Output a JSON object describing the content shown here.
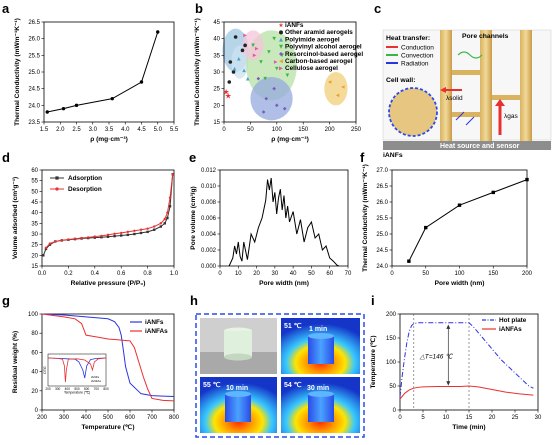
{
  "panels": {
    "a": "a",
    "b": "b",
    "c": "c",
    "d": "d",
    "e": "e",
    "f": "f",
    "g": "g",
    "h": "h",
    "i": "i"
  },
  "chart_data": [
    {
      "panel": "a",
      "type": "line",
      "xlabel": "ρ (mg·cm⁻³)",
      "ylabel": "Thermal Conductivity (mWm⁻¹K⁻¹)",
      "xlim": [
        1.5,
        5.5
      ],
      "ylim": [
        23.5,
        26.5
      ],
      "xticks": [
        "1.5",
        "2.0",
        "2.5",
        "3.0",
        "3.5",
        "4.0",
        "4.5",
        "5.0",
        "5.5"
      ],
      "yticks": [
        "23.5",
        "24.0",
        "24.5",
        "25.0",
        "25.5",
        "26.0",
        "26.5"
      ],
      "x": [
        1.6,
        2.1,
        2.5,
        3.6,
        4.5,
        5.0
      ],
      "y": [
        23.8,
        23.9,
        24.0,
        24.2,
        24.7,
        26.2
      ],
      "marker": "circle",
      "color": "#000000"
    },
    {
      "panel": "b",
      "type": "scatter",
      "xlabel": "ρ (mg·cm⁻³)",
      "ylabel": "Thermal Conductivity (mWm⁻¹K⁻¹)",
      "xlim": [
        0,
        250
      ],
      "ylim": [
        15,
        45
      ],
      "xticks": [
        "0",
        "50",
        "100",
        "150",
        "200",
        "250"
      ],
      "yticks": [
        "15",
        "20",
        "25",
        "30",
        "35",
        "40",
        "45"
      ],
      "legend_position": "top-right",
      "series": [
        {
          "name": "iANFs",
          "color": "#e8312f",
          "marker": "star",
          "points": [
            [
              4,
              24.0
            ],
            [
              8,
              22.8
            ]
          ]
        },
        {
          "name": "Other aramid aerogels",
          "color": "#222222",
          "marker": "circle",
          "points": [
            [
              22,
              40.5
            ],
            [
              35,
              36.5
            ],
            [
              40,
              38
            ],
            [
              12,
              33
            ],
            [
              18,
              30
            ],
            [
              10,
              27
            ]
          ]
        },
        {
          "name": "Polyimide aerogel",
          "color": "#4aa6c9",
          "marker": "triangle",
          "points": [
            [
              20,
              31
            ],
            [
              28,
              34
            ],
            [
              38,
              30.5
            ],
            [
              45,
              28
            ]
          ]
        },
        {
          "name": "Polyvinyl alcohol aerogel",
          "color": "#3bb44a",
          "marker": "triangle-down",
          "points": [
            [
              55,
              38
            ],
            [
              70,
              33
            ],
            [
              85,
              36
            ],
            [
              100,
              31
            ],
            [
              110,
              35
            ],
            [
              120,
              29
            ],
            [
              95,
              40
            ],
            [
              78,
              28
            ]
          ]
        },
        {
          "name": "Resorcinol-based aerogel",
          "color": "#7e57c2",
          "marker": "diamond",
          "points": [
            [
              65,
              28
            ],
            [
              80,
              22
            ],
            [
              95,
              25
            ],
            [
              115,
              19
            ],
            [
              100,
              20
            ],
            [
              75,
              18
            ]
          ]
        },
        {
          "name": "Carbon-based aerogel",
          "color": "#f0a030",
          "marker": "triangle-left",
          "points": [
            [
              200,
              27
            ],
            [
              215,
              23
            ],
            [
              225,
              25.5
            ]
          ]
        },
        {
          "name": "Cellulose aerogel",
          "color": "#e05aa0",
          "marker": "triangle-right",
          "points": [
            [
              62,
              37
            ],
            [
              58,
              35
            ],
            [
              40,
              41
            ],
            [
              98,
              33
            ]
          ]
        }
      ],
      "regions": [
        {
          "name": "Other aramid aerogels",
          "color": "#9fc7e2",
          "cx": 22,
          "cy": 36.5,
          "rx": 25,
          "ry": 6.5
        },
        {
          "name": "Polyimide aerogel",
          "color": "#cce1f0",
          "cx": 30,
          "cy": 33,
          "rx": 16,
          "ry": 5
        },
        {
          "name": "Polyvinyl alcohol aerogel",
          "color": "#b7e2a6",
          "cx": 90,
          "cy": 32,
          "rx": 48,
          "ry": 10.5
        },
        {
          "name": "Resorcinol-based aerogel",
          "color": "#94a9dd",
          "cx": 90,
          "cy": 22,
          "rx": 40,
          "ry": 6.5
        },
        {
          "name": "Carbon-based aerogel",
          "color": "#f2cf78",
          "cx": 212,
          "cy": 25,
          "rx": 22,
          "ry": 5
        },
        {
          "name": "Cellulose aerogel",
          "color": "#f4c6da",
          "cx": 55,
          "cy": 38,
          "rx": 20,
          "ry": 4.5
        }
      ]
    },
    {
      "panel": "d",
      "type": "line",
      "xlabel": "Relative pressure (P/P₀)",
      "ylabel": "Volume adsorbed (cm³g⁻¹)",
      "xlim": [
        0,
        1.0
      ],
      "ylim": [
        15,
        60
      ],
      "xticks": [
        "0.0",
        "0.2",
        "0.4",
        "0.6",
        "0.8",
        "1.0"
      ],
      "yticks": [
        "15",
        "20",
        "25",
        "30",
        "35",
        "40",
        "45",
        "50",
        "55",
        "60"
      ],
      "legend_position": "top-left",
      "series": [
        {
          "name": "Adsorption",
          "color": "#333333",
          "marker": "square",
          "x": [
            0.01,
            0.03,
            0.06,
            0.1,
            0.15,
            0.2,
            0.25,
            0.3,
            0.35,
            0.4,
            0.45,
            0.5,
            0.55,
            0.6,
            0.65,
            0.7,
            0.75,
            0.8,
            0.85,
            0.9,
            0.93,
            0.95,
            0.97,
            0.99
          ],
          "y": [
            20,
            23,
            25,
            26.5,
            27,
            27.3,
            27.6,
            27.9,
            28.1,
            28.3,
            28.5,
            28.7,
            29,
            29.3,
            29.6,
            30,
            30.5,
            31,
            32,
            33.5,
            35,
            37.5,
            43,
            58
          ]
        },
        {
          "name": "Desorption",
          "color": "#e8312f",
          "marker": "circle",
          "x": [
            0.99,
            0.97,
            0.95,
            0.93,
            0.9,
            0.85,
            0.8,
            0.75,
            0.7,
            0.65,
            0.6,
            0.55,
            0.5,
            0.45,
            0.4,
            0.35,
            0.3,
            0.25,
            0.2,
            0.15,
            0.1,
            0.06,
            0.03
          ],
          "y": [
            58,
            47,
            40,
            37,
            35,
            33.5,
            32.5,
            32,
            31.5,
            31,
            30.5,
            30.1,
            29.6,
            29.1,
            28.8,
            28.4,
            28.1,
            27.8,
            27.4,
            27.1,
            26.5,
            25.5,
            23.5
          ]
        }
      ]
    },
    {
      "panel": "e",
      "type": "line",
      "xlabel": "Pore width (nm)",
      "ylabel": "Pore volume (cm³/g)",
      "xlim": [
        0,
        70
      ],
      "ylim": [
        0,
        0.012
      ],
      "xticks": [
        "0",
        "10",
        "20",
        "30",
        "40",
        "50",
        "60",
        "70"
      ],
      "yticks": [
        "0.000",
        "0.002",
        "0.004",
        "0.006",
        "0.008",
        "0.010",
        "0.012"
      ],
      "x": [
        5,
        7,
        8,
        9,
        10,
        11,
        12,
        13,
        15,
        17,
        19,
        21,
        23,
        25,
        26,
        27,
        28,
        29,
        30,
        31,
        32,
        33,
        34,
        35,
        36,
        37,
        38,
        40,
        42,
        44,
        46,
        48,
        50,
        52,
        54,
        56,
        58,
        60,
        62,
        64,
        65
      ],
      "y": [
        0,
        0.001,
        0.0025,
        0.0015,
        0.003,
        0.0012,
        0.0006,
        0.003,
        0.0008,
        0.004,
        0.003,
        0.0048,
        0.006,
        0.0082,
        0.0108,
        0.0095,
        0.011,
        0.008,
        0.0092,
        0.0065,
        0.0085,
        0.0096,
        0.007,
        0.0088,
        0.006,
        0.0075,
        0.0055,
        0.0068,
        0.004,
        0.0058,
        0.003,
        0.0048,
        0.0055,
        0.0035,
        0.004,
        0.002,
        0.0025,
        0.001,
        0.0006,
        0.0001,
        0
      ],
      "color": "#000000"
    },
    {
      "panel": "f",
      "type": "line",
      "xlabel": "Pore width (nm)",
      "ylabel": "Thermal Conductivity (mWm⁻¹K⁻¹)",
      "xlim": [
        0,
        200
      ],
      "ylim": [
        24.0,
        27.0
      ],
      "xticks": [
        "0",
        "50",
        "100",
        "150",
        "200"
      ],
      "yticks": [
        "24.0",
        "24.5",
        "25.0",
        "25.5",
        "26.0",
        "26.5",
        "27.0"
      ],
      "x": [
        25,
        50,
        100,
        150,
        200
      ],
      "y": [
        24.15,
        25.2,
        25.9,
        26.3,
        26.7
      ],
      "marker": "square",
      "color": "#000000"
    },
    {
      "panel": "g",
      "type": "line",
      "xlabel": "Temperature (℃)",
      "ylabel": "Residual weight (%)",
      "xlim": [
        200,
        800
      ],
      "ylim": [
        0,
        100
      ],
      "xticks": [
        "200",
        "300",
        "400",
        "500",
        "600",
        "700",
        "800"
      ],
      "yticks": [
        "0",
        "20",
        "40",
        "60",
        "80",
        "100"
      ],
      "legend_position": "top-right",
      "series": [
        {
          "name": "iANFs",
          "color": "#2a35e0",
          "x": [
            200,
            300,
            400,
            500,
            530,
            550,
            560,
            570,
            580,
            600,
            650,
            700,
            750,
            800
          ],
          "y": [
            100,
            99,
            97,
            95,
            92,
            86,
            78,
            62,
            45,
            28,
            17,
            15,
            14.5,
            14
          ]
        },
        {
          "name": "iANFAs",
          "color": "#e8312f",
          "x": [
            200,
            300,
            350,
            380,
            400,
            450,
            500,
            550,
            600,
            620,
            640,
            660,
            680,
            700,
            750,
            800
          ],
          "y": [
            100,
            97,
            95,
            90,
            78,
            76,
            74,
            73,
            72,
            65,
            50,
            35,
            22,
            12,
            10,
            9.5
          ]
        }
      ],
      "inset": {
        "xlabel": "Temperature (℃)",
        "ylabel": "DTG",
        "xticks": [
          "200",
          "300",
          "400",
          "500",
          "600",
          "700",
          "800"
        ],
        "series": [
          {
            "name": "iANFs",
            "color": "#2a35e0",
            "x": [
              200,
              300,
              400,
              480,
              520,
              560,
              580,
              600,
              640,
              700,
              800
            ],
            "y": [
              0,
              -0.1,
              -0.2,
              -0.3,
              -1,
              -3,
              -5,
              -2,
              -0.4,
              -0.1,
              0
            ]
          },
          {
            "name": "iANFAs",
            "color": "#e8312f",
            "x": [
              200,
              300,
              350,
              370,
              380,
              390,
              410,
              500,
              580,
              640,
              660,
              680,
              720,
              800
            ],
            "y": [
              0,
              -0.1,
              -0.3,
              -2,
              -6,
              -3,
              -0.3,
              -0.2,
              -0.5,
              -1.5,
              -3,
              -1,
              -0.2,
              0
            ]
          }
        ]
      }
    },
    {
      "panel": "i",
      "type": "line",
      "xlabel": "Time (min)",
      "ylabel": "Temperature (℃)",
      "xlim": [
        0,
        30
      ],
      "ylim": [
        0,
        220
      ],
      "xticks": [
        "0",
        "5",
        "10",
        "15",
        "20",
        "25",
        "30"
      ],
      "yticks": [
        "0",
        "50",
        "100",
        "150",
        "200"
      ],
      "legend_position": "top-right",
      "annotation": "△T=146 ℃",
      "series": [
        {
          "name": "Hot plate",
          "color": "#2a35e0",
          "style": "dash-dot",
          "x": [
            0,
            0.5,
            1,
            1.5,
            2,
            2.5,
            3,
            4,
            5,
            8,
            10,
            13,
            15,
            16,
            18,
            20,
            22,
            24,
            26,
            28,
            29
          ],
          "y": [
            30,
            80,
            120,
            155,
            180,
            193,
            198,
            200,
            200,
            200,
            200,
            200,
            200,
            190,
            165,
            140,
            115,
            95,
            75,
            55,
            50
          ]
        },
        {
          "name": "iANFAs",
          "color": "#e8312f",
          "style": "solid",
          "x": [
            0,
            1,
            2,
            3,
            4,
            5,
            8,
            10,
            13,
            15,
            17,
            20,
            23,
            26,
            29
          ],
          "y": [
            25,
            38,
            46,
            50,
            52,
            53,
            54,
            54,
            54,
            55,
            53,
            47,
            41,
            37,
            34
          ]
        }
      ],
      "vlines": [
        3,
        15
      ]
    }
  ],
  "diagram_c": {
    "title_heat": "Heat transfer:",
    "pore_channels": "Pore channels",
    "legend": [
      {
        "label": "Conduction",
        "color": "#e8312f"
      },
      {
        "label": "Convection",
        "color": "#3bb44a"
      },
      {
        "label": "Radiation",
        "color": "#2a35e0"
      }
    ],
    "cell_wall": "Cell wall:",
    "lambda_solid": "λsolid",
    "lambda_gas": "λgas",
    "ianfs_label": "iANFs",
    "base_label": "Heat source and sensor"
  },
  "panel_h": {
    "labels": [
      {
        "temp": "51 ℃",
        "time": "1 min"
      },
      {
        "temp": "55 ℃",
        "time": "10 min"
      },
      {
        "temp": "54 ℃",
        "time": "30 min"
      }
    ]
  }
}
